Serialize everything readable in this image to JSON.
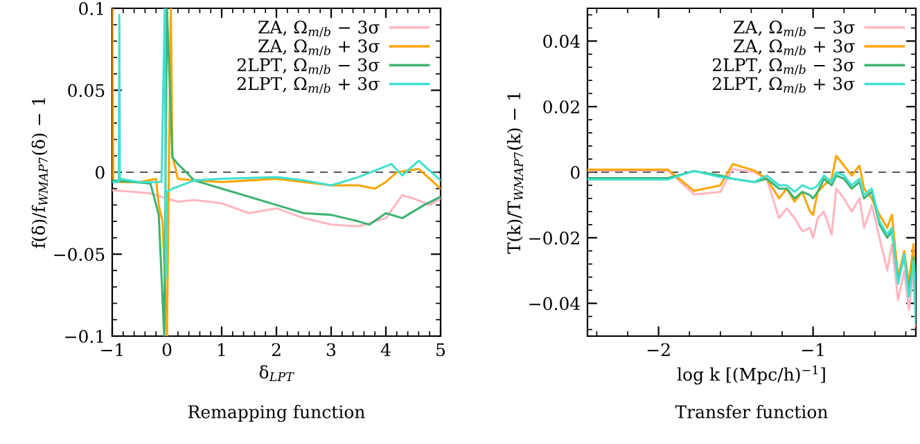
{
  "chart_data": [
    {
      "type": "line",
      "xlabel": "δ$_{LPT}$",
      "ylabel": "f(δ)/f$_{WMAP7}$(δ) − 1",
      "annotations": [
        "Remapping function"
      ],
      "xlim": [
        -1,
        5
      ],
      "ylim": [
        -0.1,
        0.1
      ],
      "xticks": [
        -1,
        0,
        1,
        2,
        3,
        4,
        5
      ],
      "yticks": [
        -0.1,
        -0.05,
        0,
        0.05,
        0.1
      ],
      "legend": "top right",
      "grid": false,
      "ref_lines": [
        {
          "axis": "y",
          "value": 0,
          "color": "#555555",
          "line_style": "dashed"
        }
      ],
      "series": [
        {
          "name": "ZA, Ω$_{m/b}$ − 3σ",
          "color": "#ffb6c1",
          "x": [
            -1,
            -0.6,
            -0.3,
            -0.1,
            0.0,
            0.2,
            0.5,
            1,
            1.5,
            2,
            2.5,
            3,
            3.5,
            3.8,
            4,
            4.3,
            4.5,
            4.8,
            5
          ],
          "values": [
            -0.011,
            -0.012,
            -0.013,
            -0.015,
            -0.016,
            -0.018,
            -0.017,
            -0.019,
            -0.025,
            -0.022,
            -0.028,
            -0.032,
            -0.033,
            -0.03,
            -0.028,
            -0.014,
            -0.016,
            -0.02,
            -0.016
          ]
        },
        {
          "name": "ZA, Ω$_{m/b}$ + 3σ",
          "color": "#ffa500",
          "x": [
            -1,
            -0.98,
            -0.9,
            -0.5,
            -0.2,
            -0.15,
            -0.08,
            0.0,
            0.07,
            0.1,
            0.2,
            0.5,
            1,
            1.5,
            2,
            2.5,
            3,
            3.5,
            3.8,
            4,
            4.2,
            4.6,
            4.8,
            5
          ],
          "values": [
            0.1,
            -0.005,
            -0.006,
            -0.006,
            -0.004,
            -0.02,
            -0.03,
            -0.1,
            0.1,
            0.01,
            -0.004,
            -0.005,
            -0.006,
            -0.005,
            -0.004,
            -0.006,
            -0.008,
            -0.008,
            -0.01,
            -0.006,
            0.0,
            0.002,
            -0.004,
            -0.01
          ]
        },
        {
          "name": "2LPT, Ω$_{m/b}$ − 3σ",
          "color": "#3cb371",
          "x": [
            -1,
            -0.6,
            -0.3,
            -0.15,
            -0.05,
            0.0,
            0.1,
            0.2,
            0.5,
            1,
            1.5,
            2,
            2.5,
            3,
            3.5,
            3.7,
            4,
            4.3,
            4.7,
            5
          ],
          "values": [
            -0.005,
            -0.006,
            -0.007,
            -0.026,
            -0.1,
            0.1,
            0.009,
            0.005,
            -0.005,
            -0.01,
            -0.015,
            -0.02,
            -0.025,
            -0.026,
            -0.03,
            -0.032,
            -0.025,
            -0.028,
            -0.02,
            -0.015
          ]
        },
        {
          "name": "2LPT, Ω$_{m/b}$ + 3σ",
          "color": "#40e0d0",
          "x": [
            -1,
            -0.88,
            -0.87,
            -0.86,
            -0.5,
            -0.1,
            -0.04,
            -0.02,
            0.0,
            0.1,
            0.5,
            1,
            2,
            2.5,
            3,
            3.5,
            4.1,
            4.3,
            4.6,
            5
          ],
          "values": [
            -0.006,
            -0.006,
            0.096,
            -0.004,
            -0.006,
            -0.006,
            0.1,
            -0.064,
            -0.012,
            -0.01,
            -0.005,
            -0.004,
            -0.003,
            -0.005,
            -0.008,
            -0.003,
            0.005,
            -0.002,
            0.007,
            -0.005
          ]
        }
      ]
    },
    {
      "type": "line",
      "xlabel": "log k [(Mpc/h)$^{−1}$]",
      "ylabel": "T(k)/T$_{WMAP7}$(k) − 1",
      "annotations": [
        "Transfer function"
      ],
      "xlim": [
        -2.46,
        -0.335
      ],
      "ylim": [
        -0.05,
        0.05
      ],
      "xticks": [
        -2,
        -1
      ],
      "yticks": [
        -0.04,
        -0.02,
        0,
        0.02,
        0.04
      ],
      "legend": "top right",
      "grid": false,
      "ref_lines": [
        {
          "axis": "y",
          "value": 0,
          "color": "#555555",
          "line_style": "dashed"
        }
      ],
      "x": [
        -2.46,
        -1.94,
        -1.77,
        -1.6,
        -1.52,
        -1.38,
        -1.3,
        -1.22,
        -1.17,
        -1.12,
        -1.07,
        -1.02,
        -1.0,
        -0.97,
        -0.93,
        -0.88,
        -0.85,
        -0.8,
        -0.75,
        -0.7,
        -0.67,
        -0.62,
        -0.57,
        -0.52,
        -0.49,
        -0.45,
        -0.41,
        -0.38,
        -0.35,
        -0.335
      ],
      "series": [
        {
          "name": "ZA, Ω$_{m/b}$ − 3σ",
          "color": "#ffb6c1",
          "values": [
            0.0005,
            0.0005,
            -0.0068,
            -0.006,
            0.001,
            0.0,
            -0.002,
            -0.014,
            -0.011,
            -0.014,
            -0.018,
            -0.017,
            -0.02,
            -0.014,
            -0.012,
            -0.019,
            -0.005,
            -0.008,
            -0.012,
            -0.008,
            -0.017,
            -0.01,
            -0.02,
            -0.03,
            -0.022,
            -0.039,
            -0.03,
            -0.042,
            -0.03,
            -0.047
          ]
        },
        {
          "name": "ZA, Ω$_{m/b}$ + 3σ",
          "color": "#ffa500",
          "values": [
            0.0008,
            0.0008,
            -0.0057,
            -0.004,
            0.0025,
            0.0005,
            -0.002,
            -0.008,
            -0.005,
            -0.009,
            -0.006,
            -0.012,
            -0.013,
            -0.006,
            -0.004,
            -0.002,
            0.005,
            0.002,
            -0.001,
            0.002,
            -0.005,
            -0.008,
            -0.013,
            -0.017,
            -0.013,
            -0.032,
            -0.024,
            -0.034,
            -0.022,
            -0.04
          ]
        },
        {
          "name": "2LPT, Ω$_{m/b}$ − 3σ",
          "color": "#3cb371",
          "values": [
            -0.0018,
            -0.0018,
            0.0003,
            -0.001,
            -0.002,
            -0.003,
            -0.002,
            -0.005,
            -0.005,
            -0.008,
            -0.006,
            -0.007,
            -0.008,
            -0.006,
            -0.002,
            -0.004,
            -0.001,
            -0.002,
            -0.005,
            -0.003,
            -0.008,
            -0.006,
            -0.016,
            -0.02,
            -0.018,
            -0.033,
            -0.026,
            -0.036,
            -0.026,
            -0.044
          ]
        },
        {
          "name": "2LPT, Ω$_{m/b}$ + 3σ",
          "color": "#40e0d0",
          "values": [
            -0.0022,
            -0.0022,
            0.0004,
            -0.0015,
            -0.002,
            -0.003,
            -0.001,
            -0.004,
            -0.004,
            -0.006,
            -0.004,
            -0.005,
            -0.005,
            -0.004,
            -0.001,
            -0.003,
            0.0,
            -0.001,
            -0.004,
            -0.002,
            -0.007,
            -0.005,
            -0.015,
            -0.019,
            -0.017,
            -0.034,
            -0.025,
            -0.038,
            -0.027,
            -0.046
          ]
        }
      ]
    }
  ]
}
